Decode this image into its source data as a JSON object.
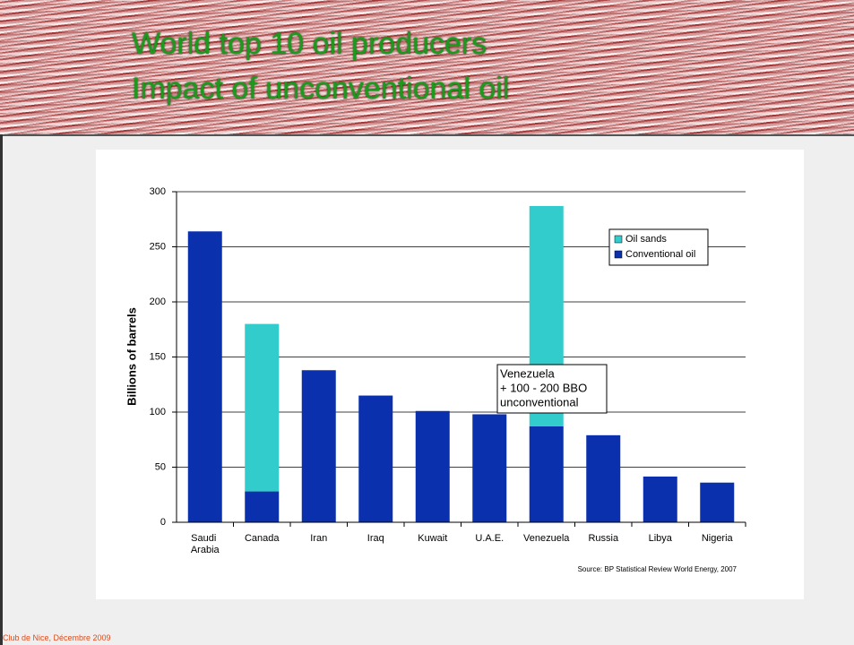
{
  "slide": {
    "title_lines": [
      "World top 10 oil producers",
      "Impact of unconventional oil"
    ],
    "footer": "Club de Nice, Décembre 2009"
  },
  "chart_data": {
    "type": "stacked_bar",
    "y_label": "Billions of barrels",
    "categories": [
      "Saudi Arabia",
      "Canada",
      "Iran",
      "Iraq",
      "Kuwait",
      "U.A.E.",
      "Venezuela",
      "Russia",
      "Libya",
      "Nigeria"
    ],
    "series": [
      {
        "name": "Conventional oil",
        "color": "#0a30ae",
        "values": [
          264,
          28,
          138,
          115,
          101,
          98,
          87,
          79,
          41.5,
          36
        ]
      },
      {
        "name": "Oil sands",
        "color": "#33cccc",
        "values": [
          null,
          152,
          null,
          null,
          null,
          null,
          200,
          null,
          null,
          null
        ]
      }
    ],
    "ylim": [
      0,
      300
    ],
    "yticks": [
      0,
      50,
      100,
      150,
      200,
      250,
      300
    ],
    "grid": true,
    "annotation": {
      "lines": [
        "Venezuela",
        "+ 100 - 200 BBO",
        "unconventional"
      ]
    },
    "source": "Source: BP Statistical Review World Energy, 2007"
  }
}
